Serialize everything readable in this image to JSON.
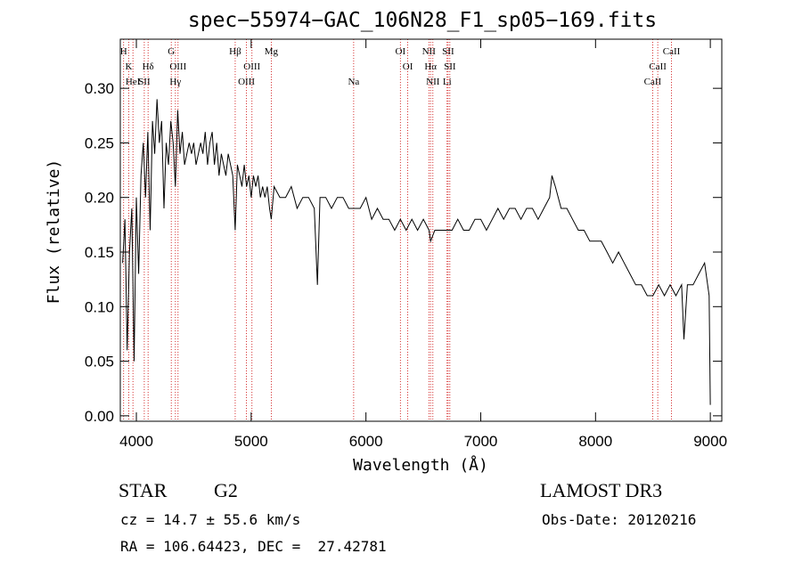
{
  "chart_data": {
    "type": "line",
    "title": "spec−55974−GAC_106N28_F1_sp05−169.fits",
    "xlabel": "Wavelength (Å)",
    "ylabel": "Flux (relative)",
    "xlim": [
      3860,
      9100
    ],
    "ylim": [
      -0.005,
      0.345
    ],
    "xticks": [
      4000,
      5000,
      6000,
      7000,
      8000,
      9000
    ],
    "yticks": [
      "0.00",
      "0.05",
      "0.10",
      "0.15",
      "0.20",
      "0.25",
      "0.30"
    ],
    "series": [
      {
        "name": "spectrum",
        "x": [
          3880,
          3900,
          3920,
          3940,
          3960,
          3980,
          4000,
          4020,
          4040,
          4060,
          4080,
          4100,
          4120,
          4140,
          4160,
          4180,
          4200,
          4220,
          4240,
          4260,
          4280,
          4300,
          4320,
          4340,
          4360,
          4380,
          4400,
          4420,
          4440,
          4460,
          4480,
          4500,
          4520,
          4540,
          4560,
          4580,
          4600,
          4620,
          4640,
          4660,
          4680,
          4700,
          4720,
          4740,
          4760,
          4780,
          4800,
          4820,
          4840,
          4861,
          4880,
          4900,
          4920,
          4940,
          4960,
          4980,
          5000,
          5020,
          5040,
          5060,
          5080,
          5100,
          5120,
          5140,
          5160,
          5175,
          5200,
          5250,
          5300,
          5350,
          5400,
          5450,
          5500,
          5550,
          5577,
          5600,
          5650,
          5700,
          5750,
          5800,
          5850,
          5890,
          5950,
          6000,
          6050,
          6100,
          6150,
          6200,
          6250,
          6300,
          6350,
          6400,
          6450,
          6500,
          6550,
          6563,
          6600,
          6650,
          6700,
          6750,
          6800,
          6850,
          6900,
          6950,
          7000,
          7050,
          7100,
          7150,
          7200,
          7250,
          7300,
          7350,
          7400,
          7450,
          7500,
          7550,
          7600,
          7620,
          7650,
          7700,
          7750,
          7800,
          7850,
          7900,
          7950,
          8000,
          8050,
          8100,
          8150,
          8200,
          8250,
          8300,
          8350,
          8400,
          8450,
          8500,
          8550,
          8600,
          8650,
          8700,
          8750,
          8770,
          8800,
          8850,
          8900,
          8950,
          8990,
          9000
        ],
        "y": [
          0.14,
          0.18,
          0.06,
          0.15,
          0.19,
          0.05,
          0.2,
          0.13,
          0.22,
          0.25,
          0.2,
          0.26,
          0.17,
          0.27,
          0.24,
          0.29,
          0.25,
          0.27,
          0.19,
          0.25,
          0.23,
          0.27,
          0.25,
          0.21,
          0.28,
          0.24,
          0.26,
          0.23,
          0.24,
          0.25,
          0.24,
          0.25,
          0.23,
          0.24,
          0.25,
          0.24,
          0.26,
          0.23,
          0.25,
          0.26,
          0.23,
          0.25,
          0.22,
          0.24,
          0.23,
          0.22,
          0.24,
          0.23,
          0.22,
          0.17,
          0.23,
          0.22,
          0.21,
          0.23,
          0.21,
          0.22,
          0.2,
          0.22,
          0.21,
          0.22,
          0.2,
          0.21,
          0.2,
          0.21,
          0.19,
          0.18,
          0.21,
          0.2,
          0.2,
          0.21,
          0.19,
          0.2,
          0.2,
          0.19,
          0.12,
          0.2,
          0.2,
          0.19,
          0.2,
          0.2,
          0.19,
          0.19,
          0.19,
          0.2,
          0.18,
          0.19,
          0.18,
          0.18,
          0.17,
          0.18,
          0.17,
          0.18,
          0.17,
          0.18,
          0.17,
          0.16,
          0.17,
          0.17,
          0.17,
          0.17,
          0.18,
          0.17,
          0.17,
          0.18,
          0.18,
          0.17,
          0.18,
          0.19,
          0.18,
          0.19,
          0.19,
          0.18,
          0.19,
          0.19,
          0.18,
          0.19,
          0.2,
          0.22,
          0.21,
          0.19,
          0.19,
          0.18,
          0.17,
          0.17,
          0.16,
          0.16,
          0.16,
          0.15,
          0.14,
          0.15,
          0.14,
          0.13,
          0.12,
          0.12,
          0.11,
          0.11,
          0.12,
          0.11,
          0.12,
          0.11,
          0.12,
          0.07,
          0.12,
          0.12,
          0.13,
          0.14,
          0.11,
          0.01
        ]
      }
    ],
    "line_markers": [
      {
        "label": "H",
        "wavelength": 3889,
        "row": 0
      },
      {
        "label": "K",
        "wavelength": 3934,
        "row": 1
      },
      {
        "label": "HeI",
        "wavelength": 3970,
        "row": 2
      },
      {
        "label": "SII",
        "wavelength": 4069,
        "row": 2
      },
      {
        "label": "Hδ",
        "wavelength": 4102,
        "row": 1
      },
      {
        "label": "G",
        "wavelength": 4304,
        "row": 0
      },
      {
        "label": "OIII",
        "wavelength": 4363,
        "row": 1
      },
      {
        "label": "Hγ",
        "wavelength": 4340,
        "row": 2
      },
      {
        "label": "Hβ",
        "wavelength": 4861,
        "row": 0
      },
      {
        "label": "OIII",
        "wavelength": 4959,
        "row": 2
      },
      {
        "label": "OIII",
        "wavelength": 5007,
        "row": 1
      },
      {
        "label": "Mg",
        "wavelength": 5175,
        "row": 0
      },
      {
        "label": "Na",
        "wavelength": 5893,
        "row": 2
      },
      {
        "label": "OI",
        "wavelength": 6300,
        "row": 0
      },
      {
        "label": "OI",
        "wavelength": 6364,
        "row": 1
      },
      {
        "label": "NII",
        "wavelength": 6548,
        "row": 0
      },
      {
        "label": "Hα",
        "wavelength": 6563,
        "row": 1
      },
      {
        "label": "NII",
        "wavelength": 6583,
        "row": 2
      },
      {
        "label": "SII",
        "wavelength": 6716,
        "row": 0
      },
      {
        "label": "SII",
        "wavelength": 6731,
        "row": 1
      },
      {
        "label": "Li",
        "wavelength": 6707,
        "row": 2
      },
      {
        "label": "CaII",
        "wavelength": 8498,
        "row": 2
      },
      {
        "label": "CaII",
        "wavelength": 8542,
        "row": 1
      },
      {
        "label": "CaII",
        "wavelength": 8662,
        "row": 0
      }
    ],
    "marker_color": "#cc0000",
    "line_color": "#000000"
  },
  "info": {
    "class_label": "STAR",
    "subclass": "G2",
    "survey": "LAMOST DR3",
    "redshift": "cz = 14.7 ± 55.6 km/s",
    "obs_date": "Obs-Date: 20120216",
    "coords": "RA = 106.64423, DEC =  27.42781"
  }
}
